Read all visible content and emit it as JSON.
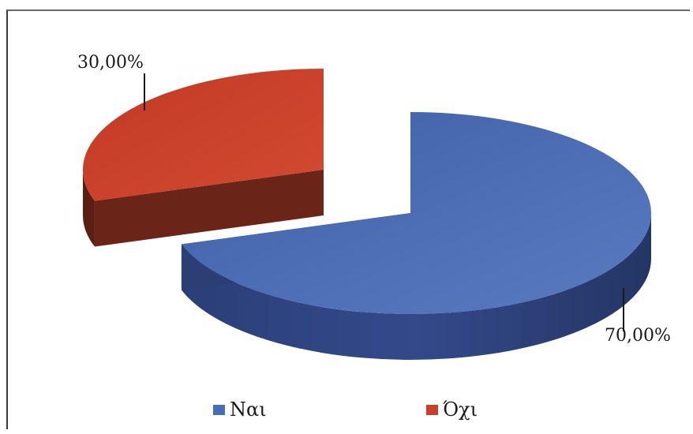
{
  "chart_data": {
    "type": "pie",
    "labels": [
      "Ναι",
      "Όχι"
    ],
    "values": [
      70.0,
      30.0
    ],
    "data_labels": [
      "70,00%",
      "30,00%"
    ],
    "colors": [
      "#4a6bb5",
      "#c8402a"
    ],
    "exploded": "Όχι",
    "three_d": true,
    "legend_position": "bottom"
  }
}
